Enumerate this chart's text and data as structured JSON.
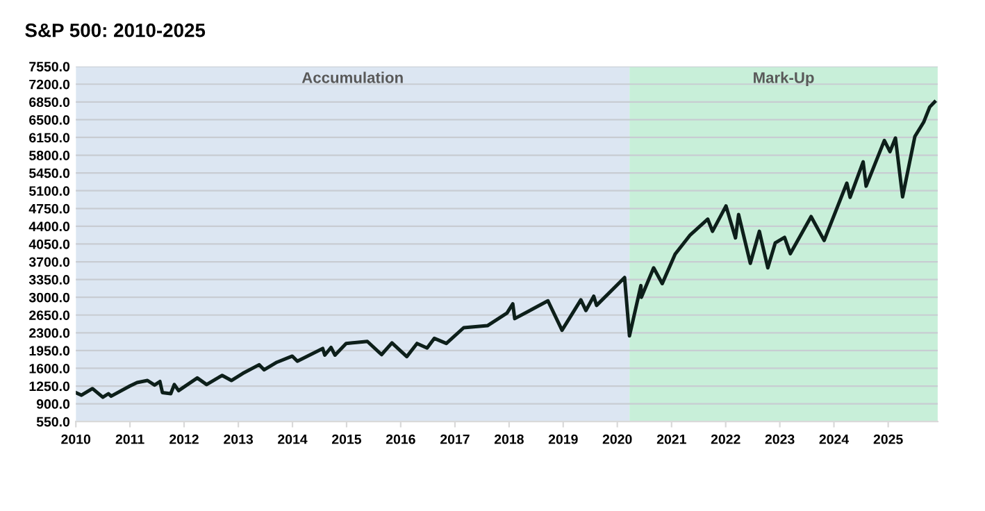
{
  "chart_data": {
    "type": "line",
    "title": "S&P 500: 2010-2025",
    "x": [
      "2010-01-04",
      "2010-02-08",
      "2010-04-23",
      "2010-07-02",
      "2010-08-09",
      "2010-08-27",
      "2010-12-31",
      "2011-02-18",
      "2011-04-29",
      "2011-06-16",
      "2011-07-22",
      "2011-08-08",
      "2011-10-03",
      "2011-10-27",
      "2011-11-25",
      "2012-03-30",
      "2012-06-01",
      "2012-09-14",
      "2012-11-15",
      "2013-01-31",
      "2013-05-21",
      "2013-06-24",
      "2013-09-18",
      "2013-12-31",
      "2014-02-03",
      "2014-07-24",
      "2014-08-07",
      "2014-09-18",
      "2014-10-15",
      "2014-12-29",
      "2015-05-21",
      "2015-08-25",
      "2015-11-03",
      "2016-02-11",
      "2016-04-20",
      "2016-06-27",
      "2016-08-15",
      "2016-11-04",
      "2017-03-01",
      "2017-08-08",
      "2017-12-18",
      "2018-01-26",
      "2018-02-08",
      "2018-09-20",
      "2018-12-24",
      "2019-04-30",
      "2019-06-03",
      "2019-07-26",
      "2019-08-14",
      "2020-02-19",
      "2020-03-23",
      "2020-06-08",
      "2020-06-11",
      "2020-09-02",
      "2020-10-30",
      "2021-01-25",
      "2021-05-07",
      "2021-09-02",
      "2021-10-04",
      "2022-01-03",
      "2022-03-08",
      "2022-03-29",
      "2022-06-16",
      "2022-08-16",
      "2022-10-12",
      "2022-12-01",
      "2023-02-02",
      "2023-03-13",
      "2023-07-31",
      "2023-10-27",
      "2024-03-28",
      "2024-04-19",
      "2024-07-16",
      "2024-08-05",
      "2024-12-06",
      "2025-01-13",
      "2025-02-19",
      "2025-04-08",
      "2025-06-30",
      "2025-08-28",
      "2025-10-08",
      "2025-11-10"
    ],
    "series": [
      {
        "color": "#0d1f1a",
        "values": [
          1115,
          1070,
          1200,
          1030,
          1100,
          1050,
          1250,
          1320,
          1360,
          1270,
          1340,
          1120,
          1100,
          1280,
          1160,
          1410,
          1280,
          1460,
          1360,
          1500,
          1670,
          1570,
          1720,
          1840,
          1740,
          1990,
          1860,
          2010,
          1860,
          2090,
          2130,
          1870,
          2100,
          1830,
          2090,
          2000,
          2190,
          2090,
          2400,
          2440,
          2690,
          2870,
          2580,
          2930,
          2350,
          2950,
          2740,
          3020,
          2840,
          3390,
          2240,
          3230,
          3000,
          3580,
          3270,
          3850,
          4230,
          4540,
          4300,
          4800,
          4170,
          4630,
          3670,
          4300,
          3580,
          4070,
          4180,
          3860,
          4590,
          4120,
          5250,
          4970,
          5670,
          5190,
          6090,
          5870,
          6140,
          4980,
          6170,
          6450,
          6750,
          6850
        ]
      }
    ],
    "xlim": [
      "2010-01-01",
      "2025-12-01"
    ],
    "xticks": [
      {
        "value": "2010",
        "label": "2010"
      },
      {
        "value": "2011",
        "label": "2011"
      },
      {
        "value": "2012",
        "label": "2012"
      },
      {
        "value": "2013",
        "label": "2013"
      },
      {
        "value": "2014",
        "label": "2014"
      },
      {
        "value": "2015",
        "label": "2015"
      },
      {
        "value": "2016",
        "label": "2016"
      },
      {
        "value": "2017",
        "label": "2017"
      },
      {
        "value": "2018",
        "label": "2018"
      },
      {
        "value": "2019",
        "label": "2019"
      },
      {
        "value": "2020",
        "label": "2020"
      },
      {
        "value": "2021",
        "label": "2021"
      },
      {
        "value": "2022",
        "label": "2022"
      },
      {
        "value": "2023",
        "label": "2023"
      },
      {
        "value": "2024",
        "label": "2024"
      },
      {
        "value": "2025",
        "label": "2025"
      }
    ],
    "ylim": [
      550,
      7550
    ],
    "yticks": [
      {
        "value": 550,
        "label": "550.0"
      },
      {
        "value": 900,
        "label": "900.0"
      },
      {
        "value": 1250,
        "label": "1250.0"
      },
      {
        "value": 1600,
        "label": "1600.0"
      },
      {
        "value": 1950,
        "label": "1950.0"
      },
      {
        "value": 2300,
        "label": "2300.0"
      },
      {
        "value": 2650,
        "label": "2650.0"
      },
      {
        "value": 3000,
        "label": "3000.0"
      },
      {
        "value": 3350,
        "label": "3350.0"
      },
      {
        "value": 3700,
        "label": "3700.0"
      },
      {
        "value": 4050,
        "label": "4050.0"
      },
      {
        "value": 4400,
        "label": "4400.0"
      },
      {
        "value": 4750,
        "label": "4750.0"
      },
      {
        "value": 5100,
        "label": "5100.0"
      },
      {
        "value": 5450,
        "label": "5450.0"
      },
      {
        "value": 5800,
        "label": "5800.0"
      },
      {
        "value": 6150,
        "label": "6150.0"
      },
      {
        "value": 6500,
        "label": "6500.0"
      },
      {
        "value": 6850,
        "label": "6850.0"
      },
      {
        "value": 7200,
        "label": "7200.0"
      },
      {
        "value": 7550,
        "label": "7550.0"
      }
    ],
    "bands": [
      {
        "axis": "x",
        "from": "2010-01-01",
        "to": "2020-03-23",
        "label": "Accumulation",
        "color": "#dce6f2"
      },
      {
        "axis": "x",
        "from": "2020-03-23",
        "to": "2025-12-01",
        "label": "Mark-Up",
        "color": "#c8efd9"
      }
    ],
    "grid": "y",
    "marker": "none",
    "line_style": "solid"
  }
}
